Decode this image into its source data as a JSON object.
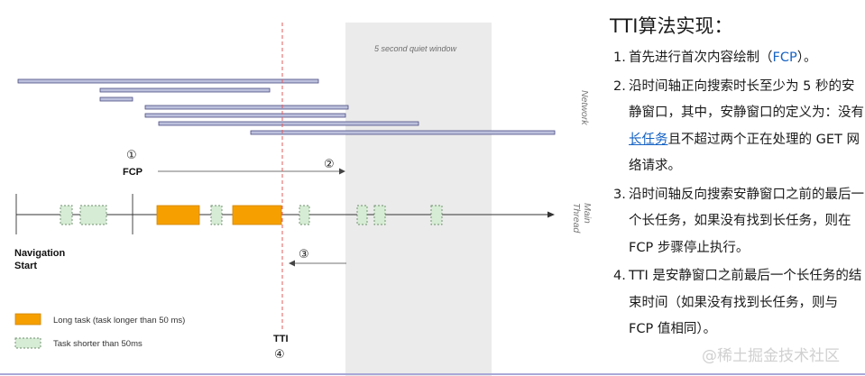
{
  "diagram": {
    "quiet_window_label": "5 second quiet window",
    "network_label": "Network",
    "main_thread_label_1": "Main",
    "main_thread_label_2": "Thread",
    "step1_marker": "①",
    "step2_marker": "②",
    "step3_marker": "③",
    "step4_marker": "④",
    "fcp_label": "FCP",
    "tti_label": "TTI",
    "nav_start_1": "Navigation",
    "nav_start_2": "Start",
    "legend_long": "Long task (task longer than 50 ms)",
    "legend_short": "Task shorter than 50ms",
    "colors": {
      "long_task": "#f5a000",
      "short_task": "#d6ecd4",
      "network_bar": "#bcc0dc",
      "tti_line": "#e45b5b",
      "quiet_window": "#ebebeb"
    }
  },
  "explain": {
    "title": "TTI算法实现：",
    "items": [
      {
        "num": "1.",
        "pre": "首先进行首次内容绘制（",
        "link": "FCP",
        "post": "）。"
      },
      {
        "num": "2.",
        "pre": "沿时间轴正向搜索时长至少为 5 秒的安静窗口，其中，安静窗口的定义为：没有",
        "link": "长任务",
        "post": "且不超过两个正在处理的 GET 网络请求。"
      },
      {
        "num": "3.",
        "text": "沿时间轴反向搜索安静窗口之前的最后一个长任务，如果没有找到长任务，则在 FCP 步骤停止执行。"
      },
      {
        "num": "4.",
        "text": "TTI 是安静窗口之前最后一个长任务的结束时间（如果没有找到长任务，则与 FCP 值相同）。"
      }
    ]
  },
  "watermark": "@稀土掘金技术社区"
}
